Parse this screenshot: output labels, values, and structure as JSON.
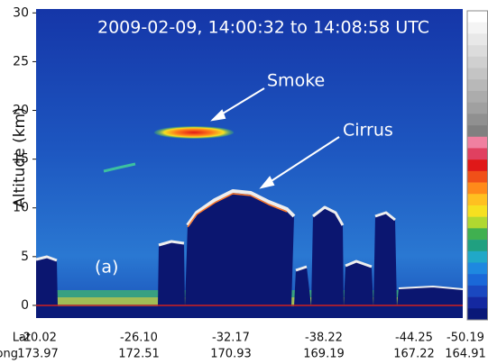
{
  "chart_data": {
    "type": "curtain",
    "title": "2009-02-09, 14:00:32 to 14:08:58 UTC",
    "ylabel": "Altitude (km)",
    "ylim": [
      -1.3,
      30.4
    ],
    "yticks": [
      0,
      5,
      10,
      15,
      20,
      25,
      30
    ],
    "x_rows": [
      {
        "name": "Lat",
        "labels": [
          -20.02,
          {
            "value": -26.1,
            "label": "-26.10"
          },
          -32.17,
          -38.22,
          -44.25,
          -50.19
        ]
      },
      {
        "name": "Long",
        "labels": [
          173.97,
          172.51,
          170.93,
          169.19,
          167.22,
          164.91
        ]
      }
    ],
    "annotations": [
      "Smoke",
      "Cirrus",
      "(a)"
    ]
  }
}
